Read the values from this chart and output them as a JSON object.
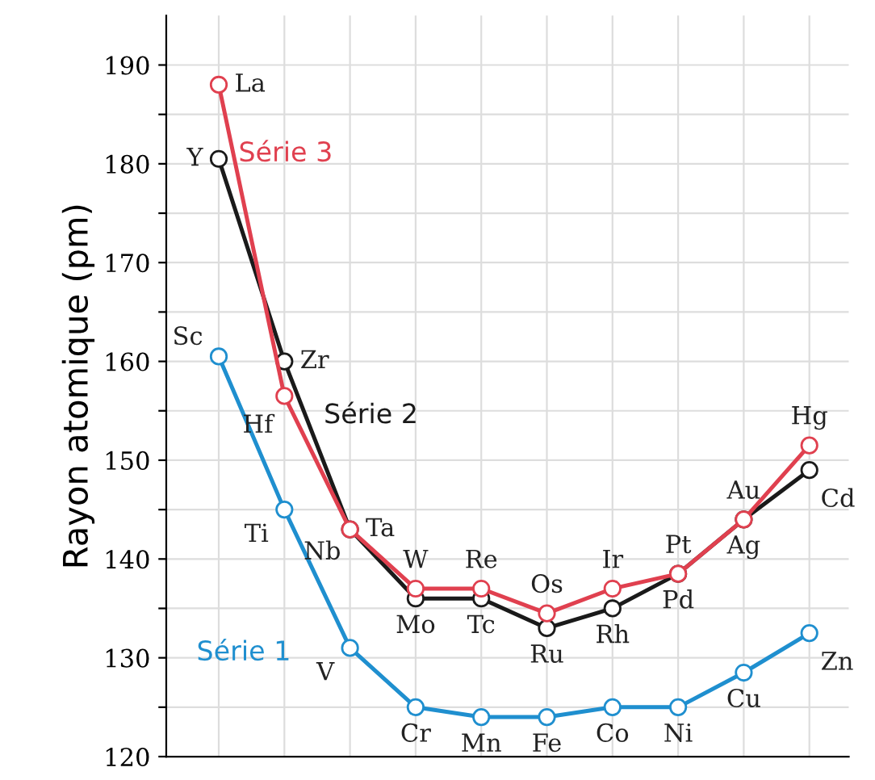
{
  "chart_data": {
    "type": "line",
    "ylabel": "Rayon atomique (pm)",
    "categories": [
      null,
      null,
      null,
      null,
      null,
      null,
      null,
      null,
      null,
      null
    ],
    "series": [
      {
        "name": "Série 1",
        "color": "#1f8fcf",
        "values": [
          160.5,
          145,
          131,
          125,
          124,
          124,
          125,
          125,
          128.5,
          132.5
        ],
        "value_labels": [
          "Sc",
          "Ti",
          "V",
          "Cr",
          "Mn",
          "Fe",
          "Co",
          "Ni",
          "Cu",
          "Zn"
        ]
      },
      {
        "name": "Série 2",
        "color": "#1a1a1a",
        "values": [
          180.5,
          160,
          143,
          136,
          136,
          133,
          135,
          138.5,
          144,
          149
        ],
        "value_labels": [
          "Y",
          "Zr",
          "Nb",
          "Mo",
          "Tc",
          "Ru",
          "Rh",
          "Pd",
          "Ag",
          "Cd"
        ]
      },
      {
        "name": "Série 3",
        "color": "#e0404f",
        "values": [
          188,
          156.5,
          143,
          137,
          137,
          134.5,
          137,
          138.5,
          144,
          151.5
        ],
        "value_labels": [
          "La",
          "Hf",
          "Ta",
          "W",
          "Re",
          "Os",
          "Ir",
          "Pt",
          "Au",
          "Hg"
        ]
      }
    ],
    "ylim": [
      120,
      195
    ],
    "yticks": [
      120,
      {
        "value": 125,
        "label": null
      },
      130,
      {
        "value": 135,
        "label": null
      },
      140,
      {
        "value": 145,
        "label": null
      },
      150,
      {
        "value": 155,
        "label": null
      },
      160,
      {
        "value": 165,
        "label": null
      },
      170,
      {
        "value": 175,
        "label": null
      },
      180,
      {
        "value": 185,
        "label": null
      },
      190
    ],
    "grid": true,
    "marker": "circle",
    "line_style": "solid",
    "legend": false
  }
}
